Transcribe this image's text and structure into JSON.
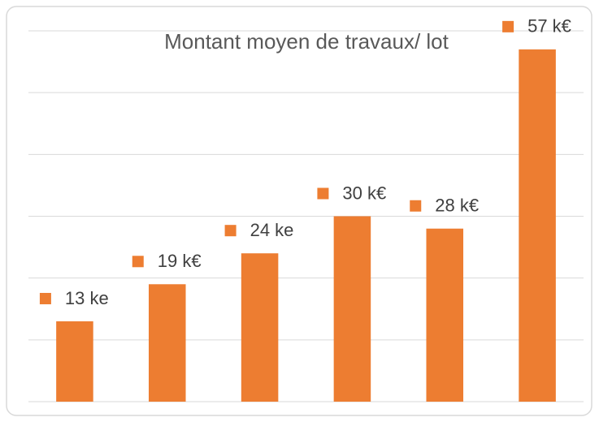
{
  "chart_data": {
    "type": "bar",
    "title": "Montant moyen de travaux/ lot",
    "categories": [
      null,
      null,
      null,
      null,
      null,
      null
    ],
    "values": [
      13,
      19,
      24,
      30,
      28,
      57
    ],
    "value_labels": [
      "13 ke",
      "19 k€",
      "24 ke",
      "30 k€",
      "28 k€",
      "57 k€"
    ],
    "color": "#ed7d31",
    "ylim": [
      0,
      60
    ],
    "yticks": [
      0,
      10,
      20,
      30,
      40,
      50,
      60
    ],
    "grid": true
  }
}
